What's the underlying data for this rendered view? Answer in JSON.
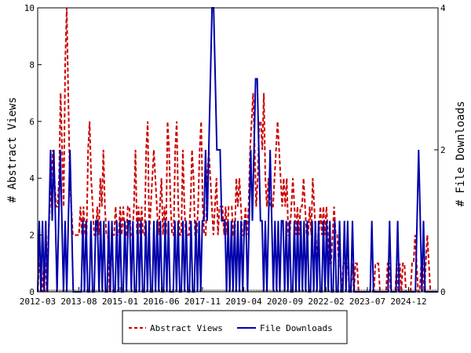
{
  "chart_data": {
    "type": "line",
    "title": "",
    "xlabel": "",
    "ylabel_left": "# Abstract Views",
    "ylabel_right": "# File Downloads",
    "x_tick_labels": [
      "2012-03",
      "2013-08",
      "2015-01",
      "2016-06",
      "2017-11",
      "2019-04",
      "2020-09",
      "2022-02",
      "2023-07",
      "2024-12"
    ],
    "y_left_ticks": [
      "0",
      "2",
      "4",
      "6",
      "8",
      "10"
    ],
    "y_left_lim": [
      0,
      10
    ],
    "y_right_ticks": [
      "0",
      "2",
      "4"
    ],
    "y_right_lim": [
      0,
      4
    ],
    "grid": false,
    "legend_position": "bottom-center",
    "series": [
      {
        "name": "Abstract Views",
        "axis": "left",
        "color": "#cc0000",
        "style": "dashed",
        "values": [
          0,
          1,
          1,
          0,
          1,
          1,
          0,
          2,
          3,
          4,
          5,
          4,
          3,
          3,
          4,
          7,
          5,
          3,
          8,
          10,
          7,
          4,
          3,
          2,
          2,
          2,
          2,
          2,
          3,
          2,
          3,
          2,
          2,
          5,
          6,
          4,
          3,
          2,
          2,
          3,
          2,
          4,
          3,
          5,
          3,
          2,
          2,
          0,
          1,
          2,
          2,
          3,
          2,
          2,
          3,
          2,
          3,
          2,
          2,
          3,
          3,
          2,
          2,
          3,
          5,
          2,
          3,
          2,
          3,
          2,
          2,
          5,
          6,
          2,
          3,
          4,
          5,
          4,
          3,
          2,
          3,
          4,
          2,
          3,
          2,
          6,
          5,
          3,
          2,
          2,
          5,
          6,
          3,
          2,
          2,
          5,
          3,
          2,
          2,
          2,
          3,
          5,
          4,
          2,
          2,
          3,
          5,
          6,
          3,
          2,
          2,
          4,
          5,
          4,
          3,
          2,
          3,
          4,
          2,
          3,
          3,
          3,
          2,
          3,
          2,
          3,
          3,
          3,
          2,
          2,
          4,
          3,
          4,
          3,
          2,
          2,
          3,
          2,
          3,
          5,
          6,
          7,
          5,
          3,
          4,
          6,
          6,
          5,
          7,
          4,
          3,
          4,
          3,
          3,
          3,
          4,
          5,
          6,
          5,
          4,
          3,
          4,
          3,
          4,
          2,
          2,
          3,
          4,
          3,
          2,
          3,
          2,
          3,
          3,
          4,
          3,
          2,
          2,
          3,
          2,
          4,
          3,
          2,
          1,
          2,
          3,
          2,
          3,
          2,
          3,
          2,
          1,
          1,
          2,
          3,
          2,
          2,
          1,
          1,
          0,
          1,
          1,
          1,
          1,
          0,
          0,
          1,
          0,
          1,
          1,
          0,
          0,
          0,
          0,
          0,
          0,
          0,
          0,
          0,
          0,
          0,
          1,
          1,
          1,
          0,
          0,
          0,
          0,
          0,
          1,
          1,
          0,
          0,
          0,
          0,
          1,
          0,
          1,
          0,
          1,
          1,
          0,
          0,
          0,
          0,
          1,
          1,
          2,
          1,
          0,
          0,
          1,
          1,
          0,
          1,
          2,
          1,
          0,
          0,
          0,
          0,
          0,
          0
        ]
      },
      {
        "name": "File Downloads",
        "axis": "right",
        "color": "#0000aa",
        "style": "solid",
        "values": [
          0,
          1,
          0,
          1,
          0,
          1,
          0,
          1,
          2,
          1,
          2,
          1,
          0,
          1,
          2,
          1,
          0,
          1,
          0,
          1,
          2,
          1,
          0,
          0,
          0,
          0,
          0,
          0,
          1,
          0,
          1,
          0,
          0,
          1,
          0,
          0,
          1,
          1,
          0,
          1,
          0,
          1,
          0,
          0,
          1,
          0,
          1,
          0,
          0,
          1,
          0,
          1,
          0,
          0,
          1,
          0,
          1,
          1,
          0,
          1,
          0,
          0,
          1,
          0,
          1,
          0,
          0,
          1,
          0,
          1,
          0,
          0,
          1,
          0,
          1,
          0,
          1,
          0,
          0,
          1,
          0,
          1,
          0,
          0,
          0,
          1,
          0,
          1,
          0,
          0,
          1,
          0,
          1,
          0,
          0,
          1,
          0,
          0,
          1,
          0,
          1,
          0,
          1,
          1,
          2,
          1,
          2,
          3,
          4,
          4,
          3,
          2,
          2,
          2,
          1,
          1,
          1,
          0,
          1,
          0,
          1,
          0,
          1,
          0,
          1,
          0,
          1,
          0,
          1,
          1,
          0,
          1,
          2,
          1,
          2,
          3,
          3,
          2,
          1,
          1,
          0,
          1,
          0,
          1,
          2,
          1,
          0,
          1,
          0,
          1,
          0,
          1,
          1,
          0,
          1,
          0,
          1,
          0,
          0,
          1,
          0,
          1,
          0,
          1,
          0,
          1,
          0,
          1,
          0,
          0,
          1,
          0,
          1,
          0,
          1,
          0,
          0,
          1,
          0,
          1,
          0,
          1,
          0,
          0,
          1,
          0,
          0,
          1,
          0,
          0,
          1,
          0,
          1,
          0,
          0,
          1,
          0,
          0,
          0,
          0,
          0,
          0,
          0,
          0,
          0,
          0,
          0,
          1,
          0,
          0,
          0,
          0,
          0,
          0,
          0,
          0,
          0,
          0,
          1,
          0,
          0,
          0,
          0,
          1,
          0,
          0,
          0,
          0,
          0,
          0,
          0,
          0,
          0,
          0,
          0,
          1,
          2,
          1,
          0,
          1,
          0,
          0,
          0,
          0,
          0,
          0,
          0,
          0,
          0
        ]
      }
    ]
  }
}
